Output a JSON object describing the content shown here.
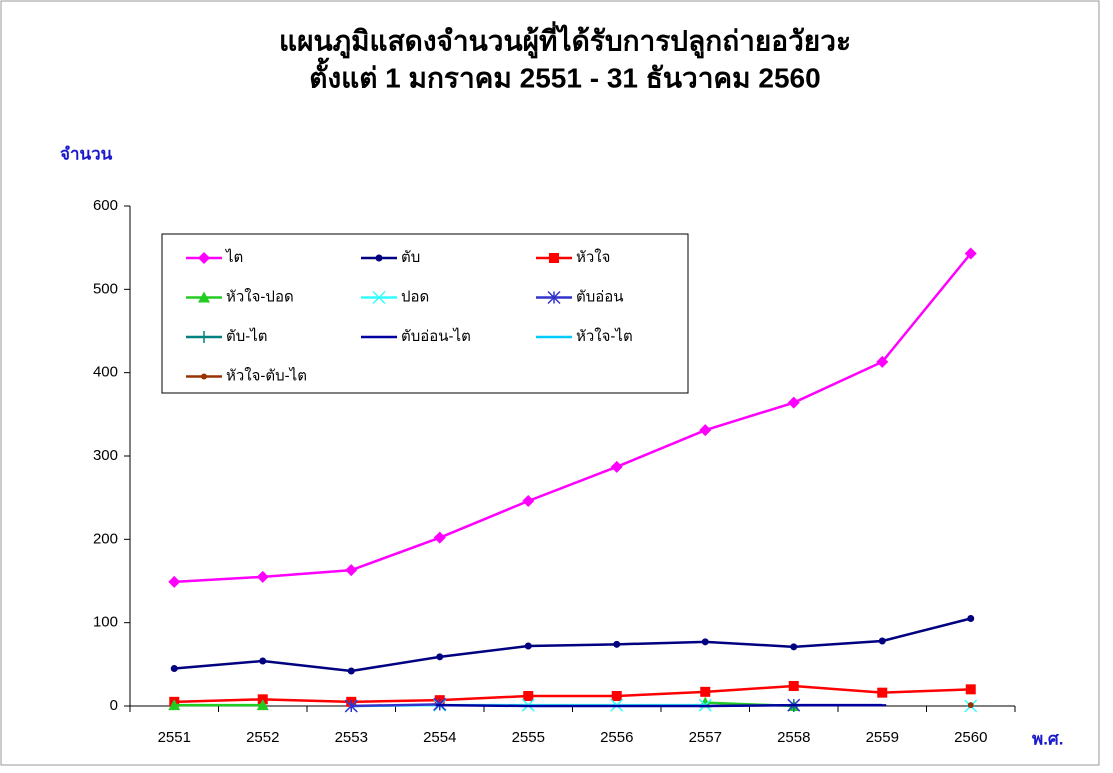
{
  "chart_data": {
    "type": "line",
    "title": "แผนภูมิแสดงจำนวนผู้ที่ได้รับการปลูกถ่ายอวัยวะ",
    "subtitle": "ตั้งแต่ 1 มกราคม 2551 - 31 ธันวาคม 2560",
    "y_label": "จำนวน",
    "x_label": "พ.ศ.",
    "categories": [
      "2551",
      "2552",
      "2553",
      "2554",
      "2555",
      "2556",
      "2557",
      "2558",
      "2559",
      "2560"
    ],
    "ylim": [
      0,
      600
    ],
    "yticks": [
      0,
      100,
      200,
      300,
      400,
      500,
      600
    ],
    "grid": false,
    "legend": "top-left",
    "series": [
      {
        "name": "ไต",
        "color": "#ff00ff",
        "marker": "diamond",
        "values": [
          149,
          155,
          163,
          202,
          246,
          287,
          331,
          364,
          413,
          543
        ]
      },
      {
        "name": "ตับ",
        "color": "#000080",
        "marker": "circle",
        "values": [
          45,
          54,
          42,
          59,
          72,
          74,
          77,
          71,
          78,
          105
        ]
      },
      {
        "name": "หัวใจ",
        "color": "#ff0000",
        "marker": "square",
        "values": [
          5,
          8,
          5,
          7,
          12,
          12,
          17,
          24,
          16,
          20
        ]
      },
      {
        "name": "หัวใจ-ปอด",
        "color": "#22cc22",
        "marker": "triangle",
        "values": [
          1,
          1,
          null,
          null,
          null,
          null,
          4,
          0,
          null,
          null
        ]
      },
      {
        "name": "ปอด",
        "color": "#33ffff",
        "marker": "x",
        "values": [
          null,
          null,
          0,
          1,
          1,
          1,
          1,
          null,
          null,
          0
        ]
      },
      {
        "name": "ตับอ่อน",
        "color": "#3333cc",
        "marker": "star",
        "values": [
          null,
          null,
          0,
          2,
          null,
          null,
          null,
          1,
          null,
          null
        ]
      },
      {
        "name": "ตับ-ไต",
        "color": "#008080",
        "marker": "plus",
        "values": [
          null,
          null,
          null,
          null,
          null,
          null,
          null,
          0,
          null,
          null
        ]
      },
      {
        "name": "ตับอ่อน-ไต",
        "color": "#0000a0",
        "marker": "dash",
        "values": [
          null,
          null,
          null,
          1,
          0,
          0,
          0,
          1,
          1,
          null
        ]
      },
      {
        "name": "หัวใจ-ไต",
        "color": "#00ccff",
        "marker": "dash",
        "values": [
          null,
          null,
          null,
          null,
          null,
          null,
          null,
          null,
          null,
          0
        ]
      },
      {
        "name": "หัวใจ-ตับ-ไต",
        "color": "#993300",
        "marker": "dot",
        "values": [
          null,
          null,
          null,
          null,
          null,
          null,
          null,
          null,
          null,
          1
        ]
      }
    ]
  }
}
